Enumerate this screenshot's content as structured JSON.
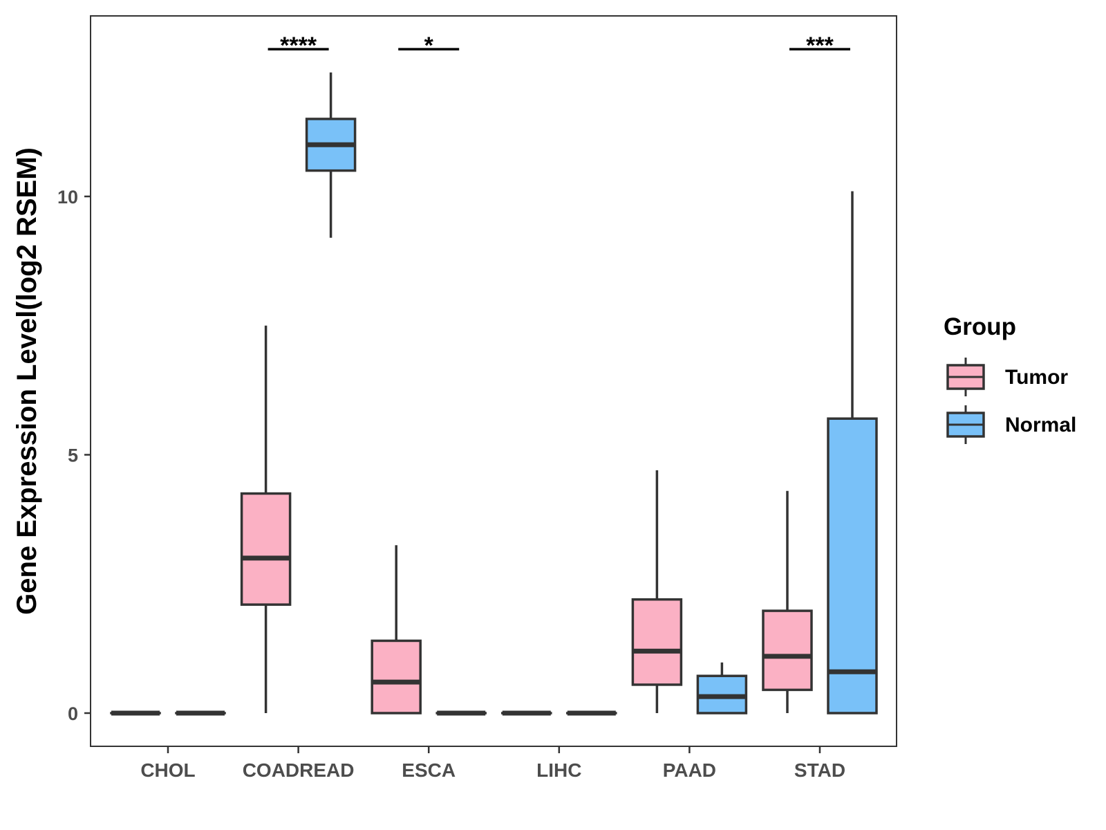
{
  "chart_data": {
    "type": "boxplot",
    "title": "",
    "xlabel": "",
    "ylabel": "Gene Expression Level(log2 RSEM)",
    "ylim": [
      -0.65,
      13.5
    ],
    "yticks": [
      0,
      5,
      10
    ],
    "grid": false,
    "categories": [
      "CHOL",
      "COADREAD",
      "ESCA",
      "LIHC",
      "PAAD",
      "STAD"
    ],
    "series": [
      {
        "name": "Tumor",
        "color": "#FBB1C4",
        "boxes": [
          {
            "min": 0,
            "q1": 0,
            "median": 0,
            "q3": 0,
            "max": 0
          },
          {
            "min": 0,
            "q1": 2.1,
            "median": 3.0,
            "q3": 4.25,
            "max": 7.5
          },
          {
            "min": 0,
            "q1": 0,
            "median": 0.6,
            "q3": 1.4,
            "max": 3.25
          },
          {
            "min": 0,
            "q1": 0,
            "median": 0,
            "q3": 0,
            "max": 0
          },
          {
            "min": 0,
            "q1": 0.55,
            "median": 1.2,
            "q3": 2.2,
            "max": 4.7
          },
          {
            "min": 0,
            "q1": 0.45,
            "median": 1.1,
            "q3": 1.98,
            "max": 4.3
          }
        ]
      },
      {
        "name": "Normal",
        "color": "#79C1F8",
        "boxes": [
          {
            "min": 0,
            "q1": 0,
            "median": 0,
            "q3": 0,
            "max": 0
          },
          {
            "min": 9.2,
            "q1": 10.5,
            "median": 11.0,
            "q3": 11.5,
            "max": 12.4
          },
          {
            "min": 0,
            "q1": 0,
            "median": 0,
            "q3": 0,
            "max": 0
          },
          {
            "min": 0,
            "q1": 0,
            "median": 0,
            "q3": 0,
            "max": 0
          },
          {
            "min": 0,
            "q1": 0,
            "median": 0.32,
            "q3": 0.72,
            "max": 0.98
          },
          {
            "min": 0,
            "q1": 0,
            "median": 0.8,
            "q3": 5.7,
            "max": 10.1
          }
        ]
      }
    ],
    "significance": [
      {
        "category": "COADREAD",
        "label": "****",
        "y": 12.85
      },
      {
        "category": "ESCA",
        "label": "*",
        "y": 12.85
      },
      {
        "category": "STAD",
        "label": "***",
        "y": 12.85
      }
    ],
    "legend": {
      "title": "Group",
      "position": "right",
      "items": [
        "Tumor",
        "Normal"
      ]
    }
  }
}
